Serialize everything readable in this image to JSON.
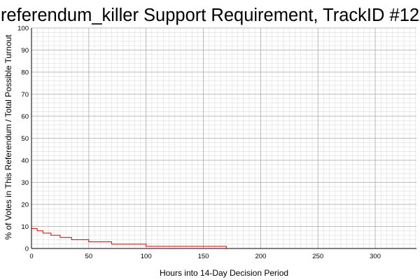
{
  "chart_data": {
    "type": "line",
    "title": "referendum_killer Support Requirement, TrackID #12",
    "xlabel": "Hours into 14-Day Decision Period",
    "ylabel": "% of Votes in This Referendum / Total Possible Turnout",
    "xlim": [
      0,
      336
    ],
    "ylim": [
      0,
      100
    ],
    "x_ticks": [
      0,
      50,
      100,
      150,
      200,
      250,
      300
    ],
    "y_ticks": [
      0,
      10,
      20,
      30,
      40,
      50,
      60,
      70,
      80,
      90,
      100
    ],
    "grid": true,
    "legend": "none",
    "series": [
      {
        "color": "#cc0000",
        "step": "post",
        "x": [
          0,
          5,
          10,
          17,
          25,
          35,
          50,
          70,
          100,
          170,
          336
        ],
        "y": [
          9,
          8,
          7,
          6,
          5,
          4,
          3,
          2,
          1,
          0,
          0
        ]
      }
    ]
  }
}
